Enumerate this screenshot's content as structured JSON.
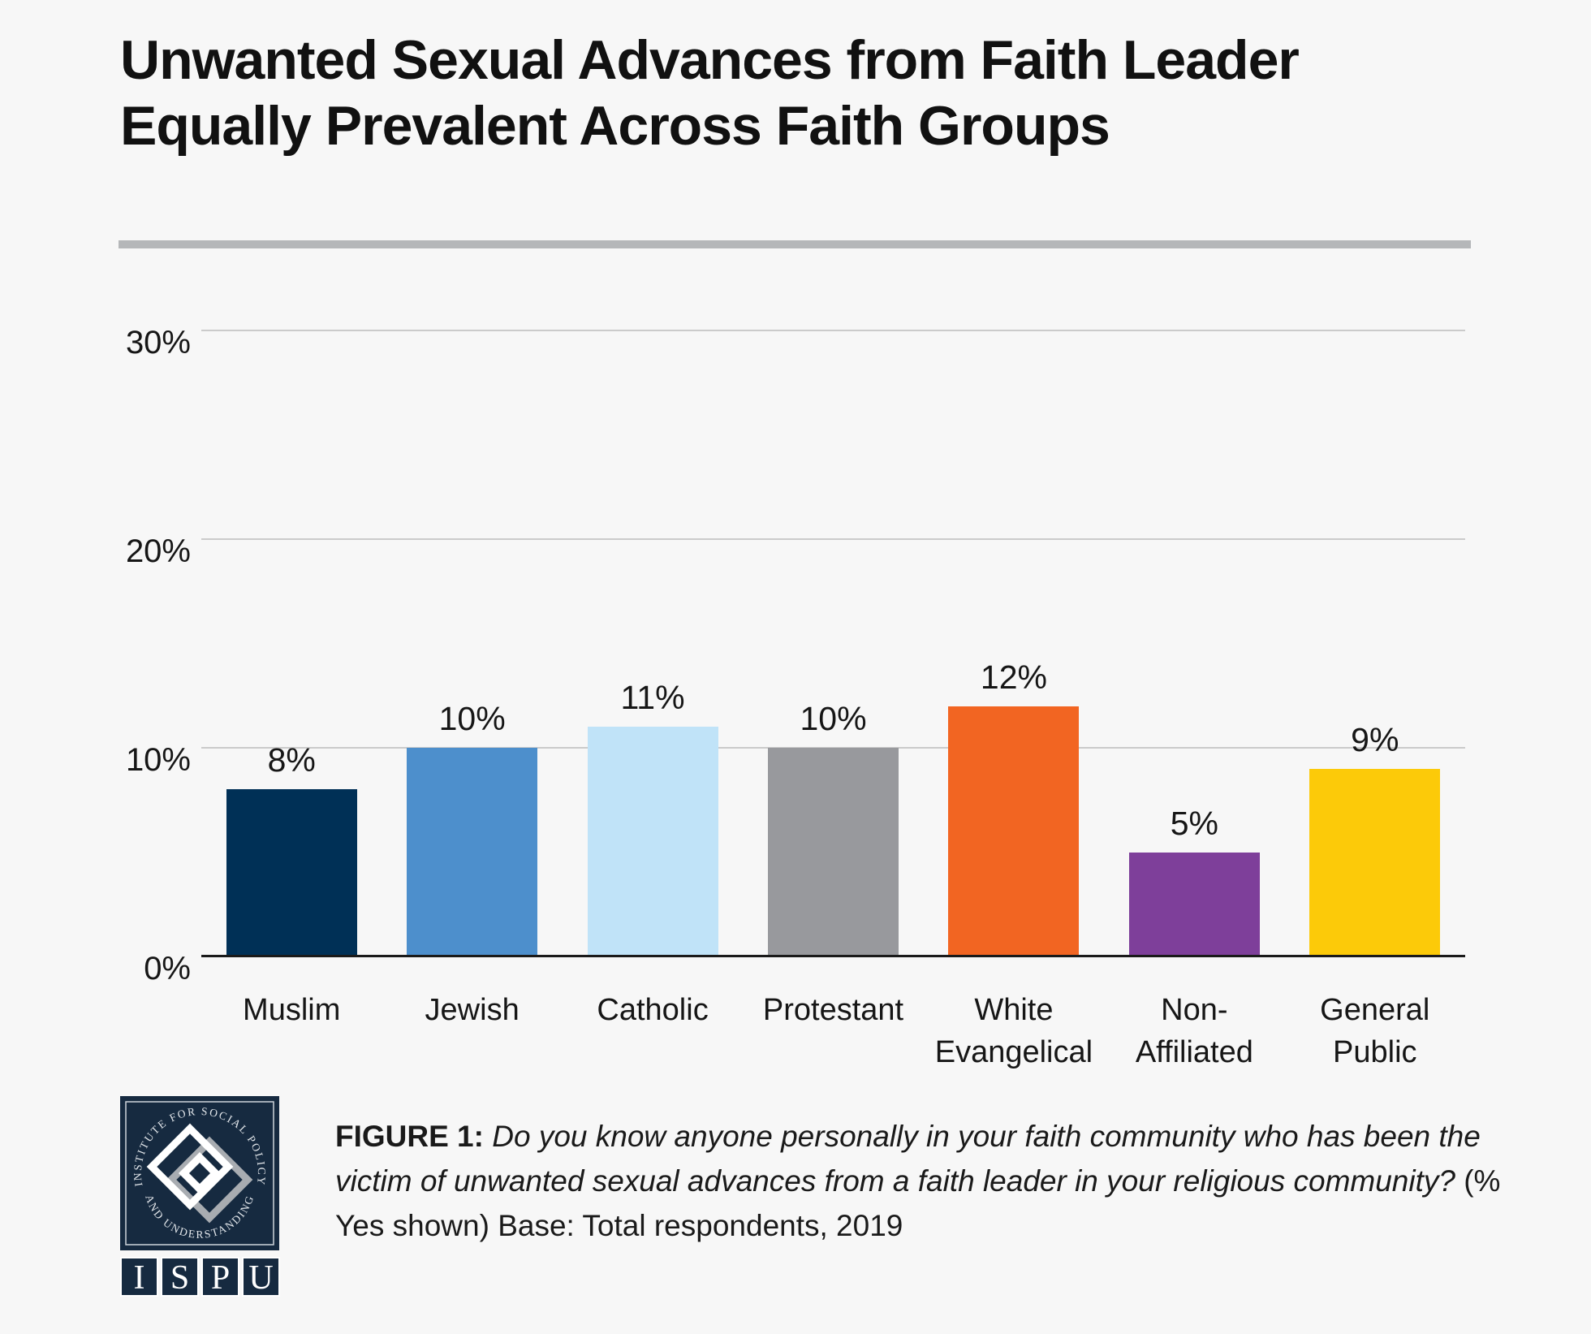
{
  "page": {
    "background": "#f7f7f7"
  },
  "title": {
    "line1": "Unwanted Sexual Advances from Faith Leader",
    "line2": "Equally Prevalent Across Faith Groups"
  },
  "chart_data": {
    "type": "bar",
    "title": "Unwanted Sexual Advances from Faith Leader Equally Prevalent Across Faith Groups",
    "categories": [
      "Muslim",
      "Jewish",
      "Catholic",
      "Protestant",
      "White Evangelical",
      "Non-Affiliated",
      "General Public"
    ],
    "category_label_lines": [
      [
        "Muslim"
      ],
      [
        "Jewish"
      ],
      [
        "Catholic"
      ],
      [
        "Protestant"
      ],
      [
        "White",
        "Evangelical"
      ],
      [
        "Non-",
        "Affiliated"
      ],
      [
        "General",
        "Public"
      ]
    ],
    "values": [
      8,
      10,
      11,
      10,
      12,
      5,
      9
    ],
    "value_labels": [
      "8%",
      "10%",
      "11%",
      "10%",
      "12%",
      "5%",
      "9%"
    ],
    "bar_colors": [
      "#003056",
      "#4d8fcc",
      "#c0e3f8",
      "#98999d",
      "#f26522",
      "#7e3f9a",
      "#fcca09"
    ],
    "xlabel": "",
    "ylabel": "",
    "ylim": [
      0,
      30
    ],
    "yticks": [
      {
        "label": "0%",
        "value": 0
      },
      {
        "label": "10%",
        "value": 10
      },
      {
        "label": "20%",
        "value": 20
      },
      {
        "label": "30%",
        "value": 30
      }
    ],
    "grid": true,
    "legend": false,
    "gridline_color": "#cbcbcb",
    "axis_color": "#1a1a1a"
  },
  "caption": {
    "prefix": "FIGURE 1:",
    "question": "Do you know anyone personally in your faith community who has been the victim of unwanted sexual advances from a faith leader in your religious community?",
    "suffix": "(% Yes shown) Base: Total respondents, 2019"
  },
  "logo": {
    "ring_text_top": "INSTITUTE FOR SOCIAL POLICY",
    "ring_text_bottom": "AND UNDERSTANDING",
    "letters": [
      "I",
      "S",
      "P",
      "U"
    ],
    "navy": "#162a40"
  }
}
